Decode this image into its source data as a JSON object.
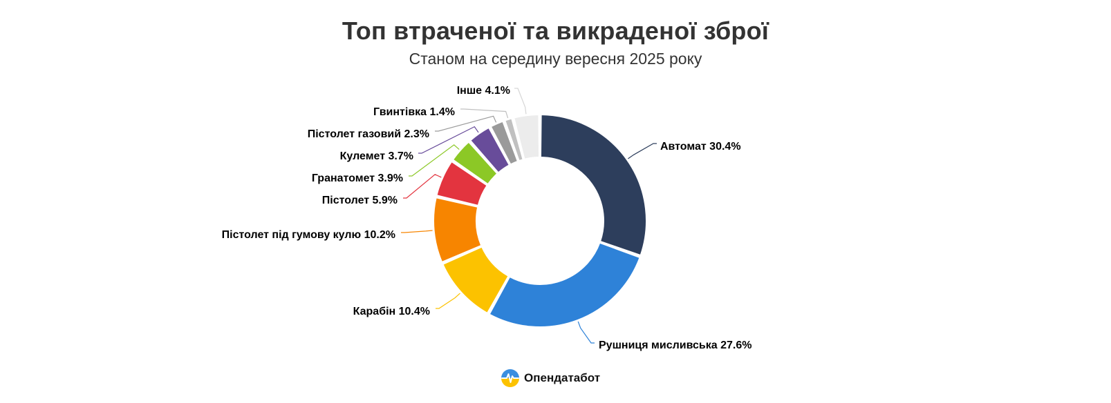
{
  "title": "Топ втраченої та викраденої зброї",
  "subtitle": "Станом на середину вересня 2025 року",
  "brand": {
    "name": "Опендатабот",
    "logo_icon": "opendatabot-logo-icon"
  },
  "chart_data": {
    "type": "pie",
    "variant": "donut",
    "title": "Топ втраченої та викраденої зброї",
    "subtitle": "Станом на середину вересня 2025 року",
    "unit": "%",
    "legend": "none",
    "slices": [
      {
        "label": "Автомат",
        "value": 30.4,
        "display": "Автомат 30.4%",
        "color": "#2d3e5c"
      },
      {
        "label": "Рушниця мисливська",
        "value": 27.6,
        "display": "Рушниця мисливська 27.6%",
        "color": "#2e82d8"
      },
      {
        "label": "Карабін",
        "value": 10.4,
        "display": "Карабін 10.4%",
        "color": "#fcc200"
      },
      {
        "label": "Пістолет під гумову кулю",
        "value": 10.2,
        "display": "Пістолет під гумову кулю 10.2%",
        "color": "#f78500"
      },
      {
        "label": "Пістолет",
        "value": 5.9,
        "display": "Пістолет 5.9%",
        "color": "#e3343f"
      },
      {
        "label": "Гранатомет",
        "value": 3.9,
        "display": "Гранатомет 3.9%",
        "color": "#8cc826"
      },
      {
        "label": "Кулемет",
        "value": 3.7,
        "display": "Кулемет 3.7%",
        "color": "#684c9a"
      },
      {
        "label": "Пістолет газовий",
        "value": 2.3,
        "display": "Пістолет газовий 2.3%",
        "color": "#9a9a9a"
      },
      {
        "label": "Гвинтівка",
        "value": 1.4,
        "display": "Гвинтівка 1.4%",
        "color": "#c0c0c0"
      },
      {
        "label": "Інше",
        "value": 4.1,
        "display": "Інше 4.1%",
        "color": "#ececec"
      }
    ]
  }
}
